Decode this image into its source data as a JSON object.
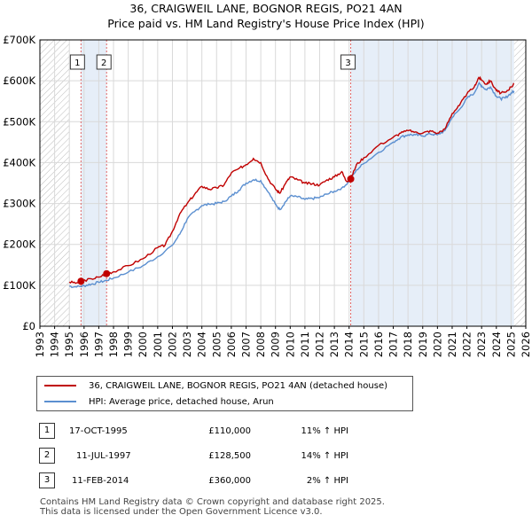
{
  "title": {
    "line1": "36, CRAIGWEIL LANE, BOGNOR REGIS, PO21 4AN",
    "line2": "Price paid vs. HM Land Registry's House Price Index (HPI)"
  },
  "legend": {
    "property": "36, CRAIGWEIL LANE, BOGNOR REGIS, PO21 4AN (detached house)",
    "hpi": "HPI: Average price, detached house, Arun"
  },
  "colors": {
    "property": "#c00000",
    "hpi": "#5b8fd0",
    "shade": "#e6eef8",
    "hatch": "#bbbbbb",
    "vline": "#e06666",
    "grid": "#d9d9d9"
  },
  "transactions": [
    {
      "num": "1",
      "date": "17-OCT-1995",
      "price": "£110,000",
      "hpi": "11% ↑ HPI"
    },
    {
      "num": "2",
      "date": "11-JUL-1997",
      "price": "£128,500",
      "hpi": "14% ↑ HPI"
    },
    {
      "num": "3",
      "date": "11-FEB-2014",
      "price": "£360,000",
      "hpi": "2% ↑ HPI"
    }
  ],
  "footer": {
    "line1": "Contains HM Land Registry data © Crown copyright and database right 2025.",
    "line2": "This data is licensed under the Open Government Licence v3.0."
  },
  "chart_data": {
    "type": "line",
    "title": "Price paid vs. HM Land Registry's House Price Index (HPI)",
    "xlim": [
      1993,
      2026
    ],
    "ylim": [
      0,
      700000
    ],
    "x_ticks": [
      1993,
      1994,
      1995,
      1996,
      1997,
      1998,
      1999,
      2000,
      2001,
      2002,
      2003,
      2004,
      2005,
      2006,
      2007,
      2008,
      2009,
      2010,
      2011,
      2012,
      2013,
      2014,
      2015,
      2016,
      2017,
      2018,
      2019,
      2020,
      2021,
      2022,
      2023,
      2024,
      2025,
      2026
    ],
    "x_tick_labels": [
      "1993",
      "1994",
      "1995",
      "1996",
      "1997",
      "1998",
      "1999",
      "2000",
      "2001",
      "2002",
      "2003",
      "2004",
      "2005",
      "2006",
      "2007",
      "2008",
      "2009",
      "2010",
      "2011",
      "2012",
      "2013",
      "2014",
      "2015",
      "2016",
      "2017",
      "2018",
      "2019",
      "2020",
      "2021",
      "2022",
      "2023",
      "2024",
      "2025",
      "2026"
    ],
    "y_ticks": [
      0,
      100000,
      200000,
      300000,
      400000,
      500000,
      600000,
      700000
    ],
    "y_tick_labels": [
      "£0",
      "£100K",
      "£200K",
      "£300K",
      "£400K",
      "£500K",
      "£600K",
      "£700K"
    ],
    "data_range": [
      1995.0,
      2025.2
    ],
    "sale_markers": [
      {
        "label": "1",
        "x": 1995.79,
        "y": 110000
      },
      {
        "label": "2",
        "x": 1997.53,
        "y": 128500
      },
      {
        "label": "3",
        "x": 2014.11,
        "y": 360000
      }
    ],
    "series": [
      {
        "name": "36, CRAIGWEIL LANE, BOGNOR REGIS, PO21 4AN (detached house)",
        "x": [
          1995.0,
          1995.5,
          1995.79,
          1996.5,
          1997.0,
          1997.53,
          1998.0,
          1999.0,
          2000.0,
          2001.0,
          2001.5,
          2002.0,
          2002.5,
          2003.0,
          2003.5,
          2004.0,
          2004.5,
          2005.0,
          2005.5,
          2006.0,
          2006.5,
          2007.0,
          2007.5,
          2008.0,
          2008.5,
          2009.0,
          2009.3,
          2009.7,
          2010.0,
          2010.5,
          2011.0,
          2011.5,
          2012.0,
          2012.5,
          2013.0,
          2013.5,
          2013.8,
          2014.11,
          2014.5,
          2015.0,
          2016.0,
          2017.0,
          2017.5,
          2018.0,
          2018.5,
          2019.0,
          2019.5,
          2020.0,
          2020.5,
          2021.0,
          2021.5,
          2022.0,
          2022.5,
          2022.8,
          2023.0,
          2023.3,
          2023.6,
          2024.0,
          2024.3,
          2024.6,
          2025.0,
          2025.2
        ],
        "y": [
          108000,
          106000,
          110000,
          116000,
          120000,
          128500,
          133000,
          148000,
          165000,
          192000,
          198000,
          232000,
          275000,
          300000,
          322000,
          342000,
          335000,
          338000,
          345000,
          375000,
          385000,
          395000,
          410000,
          400000,
          360000,
          335000,
          325000,
          350000,
          365000,
          358000,
          350000,
          348000,
          345000,
          358000,
          365000,
          378000,
          355000,
          360000,
          395000,
          412000,
          442000,
          462000,
          472000,
          478000,
          475000,
          472000,
          478000,
          472000,
          482000,
          520000,
          540000,
          568000,
          585000,
          608000,
          602000,
          592000,
          600000,
          576000,
          570000,
          572000,
          585000,
          592000
        ]
      },
      {
        "name": "HPI: Average price, detached house, Arun",
        "x": [
          1995.0,
          1995.5,
          1996.0,
          1996.5,
          1997.0,
          1997.5,
          1998.0,
          1999.0,
          2000.0,
          2001.0,
          2002.0,
          2002.5,
          2003.0,
          2003.5,
          2004.0,
          2004.5,
          2005.0,
          2005.5,
          2006.0,
          2006.5,
          2007.0,
          2007.5,
          2008.0,
          2008.5,
          2009.0,
          2009.3,
          2009.7,
          2010.0,
          2010.5,
          2011.0,
          2011.5,
          2012.0,
          2012.5,
          2013.0,
          2013.5,
          2014.0,
          2014.5,
          2015.0,
          2016.0,
          2017.0,
          2017.5,
          2018.0,
          2018.5,
          2019.0,
          2019.5,
          2020.0,
          2020.5,
          2021.0,
          2021.5,
          2022.0,
          2022.5,
          2022.8,
          2023.0,
          2023.3,
          2023.6,
          2024.0,
          2024.3,
          2024.6,
          2025.0,
          2025.2
        ],
        "y": [
          98000,
          96000,
          99000,
          103000,
          107000,
          112000,
          118000,
          132000,
          148000,
          170000,
          198000,
          225000,
          262000,
          280000,
          295000,
          298000,
          300000,
          305000,
          318000,
          332000,
          350000,
          358000,
          356000,
          328000,
          298000,
          285000,
          305000,
          318000,
          316000,
          310000,
          312000,
          315000,
          323000,
          330000,
          338000,
          353000,
          382000,
          398000,
          425000,
          450000,
          462000,
          468000,
          468000,
          465000,
          470000,
          468000,
          478000,
          510000,
          530000,
          557000,
          570000,
          593000,
          588000,
          578000,
          585000,
          562000,
          556000,
          558000,
          570000,
          575000
        ]
      }
    ]
  }
}
